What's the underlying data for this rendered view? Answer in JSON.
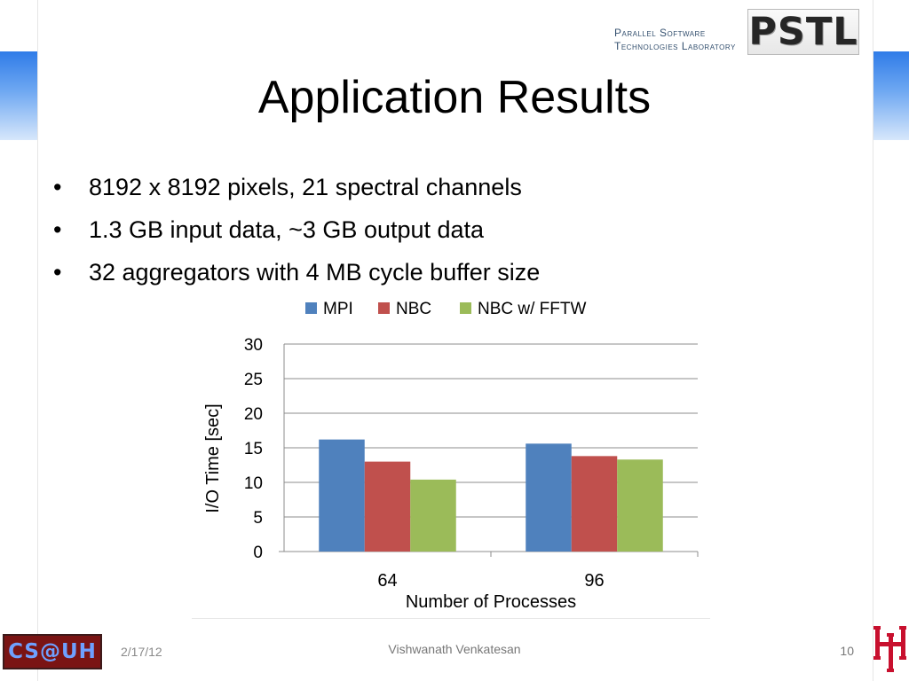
{
  "header": {
    "lab_line1": "Parallel Software",
    "lab_line2": "Technologies Laboratory",
    "lab_logo": "PSTL"
  },
  "slide": {
    "title": "Application Results",
    "bullets": [
      "8192 x 8192 pixels, 21 spectral channels",
      "1.3 GB input data, ~3 GB output data",
      "32 aggregators with 4 MB cycle buffer size"
    ],
    "bullet_glyph": "•"
  },
  "chart_data": {
    "type": "bar",
    "categories": [
      "64",
      "96"
    ],
    "series": [
      {
        "name": "MPI",
        "values": [
          16.2,
          15.6
        ],
        "color": "#4f81bd"
      },
      {
        "name": "NBC",
        "values": [
          13.0,
          13.8
        ],
        "color": "#c0504d"
      },
      {
        "name": "NBC  w/ FFTW",
        "values": [
          10.4,
          13.3
        ],
        "color": "#9bbb59"
      }
    ],
    "title": "",
    "xlabel": "Number of Processes",
    "ylabel": "I/O Time [sec]",
    "ylim": [
      0,
      30
    ],
    "yticks": [
      0,
      5,
      10,
      15,
      20,
      25,
      30
    ],
    "grid": true,
    "legend_position": "top"
  },
  "footer": {
    "logo_text": "CS@UH",
    "date": "2/17/12",
    "author": "Vishwanath Venkatesan",
    "page": "10",
    "university_logo": "UH"
  },
  "colors": {
    "band_blue": "#2f7be8",
    "uh_red": "#c8102e",
    "csuh_bg": "#7a1414"
  }
}
